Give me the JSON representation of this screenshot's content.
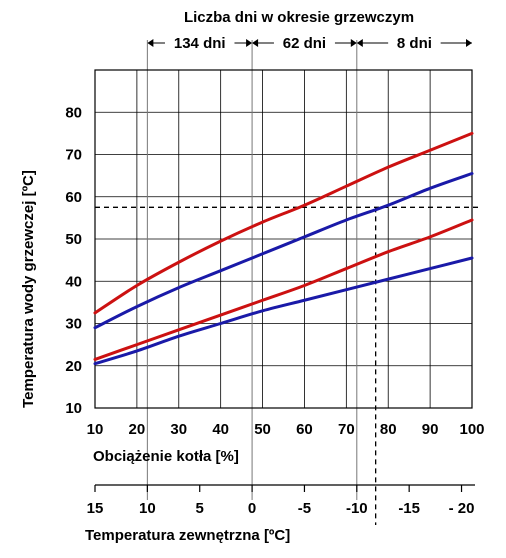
{
  "chart_data": {
    "type": "line",
    "top_title": "Liczba dni w okresie grzewczym",
    "periods": [
      {
        "label": "134 dni",
        "from_temp": 10,
        "to_temp": 0
      },
      {
        "label": "62 dni",
        "from_temp": 0,
        "to_temp": -10
      },
      {
        "label": "8 dni",
        "from_temp": -10,
        "to_temp": -20
      }
    ],
    "xlabel": "Obciążenie kotła [%]",
    "ylabel": "Temperatura wody grzewczej [ºC]",
    "temp_label": "Temperatura zewnętrzna [ºC]",
    "xlim": [
      10,
      100
    ],
    "ylim": [
      10,
      90
    ],
    "x_ticks": [
      10,
      20,
      30,
      40,
      50,
      60,
      70,
      80,
      90,
      100
    ],
    "y_ticks": [
      10,
      20,
      30,
      40,
      50,
      60,
      70,
      80
    ],
    "temp_ticks": [
      {
        "label": "15",
        "load": 10
      },
      {
        "label": "10",
        "load": 22.5
      },
      {
        "label": "5",
        "load": 35
      },
      {
        "label": "0",
        "load": 47.5
      },
      {
        "label": "-5",
        "load": 60
      },
      {
        "label": "-10",
        "load": 72.5
      },
      {
        "label": "-15",
        "load": 85
      },
      {
        "label": "- 20",
        "load": 97.5
      }
    ],
    "grid": true,
    "reference": {
      "load": 77,
      "temp": 57.5
    },
    "series": [
      {
        "color": "#cc1111",
        "x": [
          10,
          20,
          30,
          40,
          50,
          60,
          70,
          80,
          90,
          100
        ],
        "y": [
          32.5,
          39,
          44.5,
          49.5,
          54,
          58,
          62.5,
          67,
          71,
          75
        ]
      },
      {
        "color": "#1a1aa8",
        "x": [
          10,
          20,
          30,
          40,
          50,
          60,
          70,
          80,
          90,
          100
        ],
        "y": [
          29,
          34,
          38.5,
          42.5,
          46.5,
          50.5,
          54.5,
          58,
          62,
          65.5
        ]
      },
      {
        "color": "#cc1111",
        "x": [
          10,
          20,
          30,
          40,
          50,
          60,
          70,
          80,
          90,
          100
        ],
        "y": [
          21.5,
          25,
          28.5,
          32,
          35.5,
          39,
          43,
          47,
          50.5,
          54.5
        ]
      },
      {
        "color": "#1a1aa8",
        "x": [
          10,
          20,
          30,
          40,
          50,
          60,
          70,
          80,
          90,
          100
        ],
        "y": [
          20.5,
          23.5,
          27,
          30,
          33,
          35.5,
          38,
          40.5,
          43,
          45.5
        ]
      }
    ]
  }
}
